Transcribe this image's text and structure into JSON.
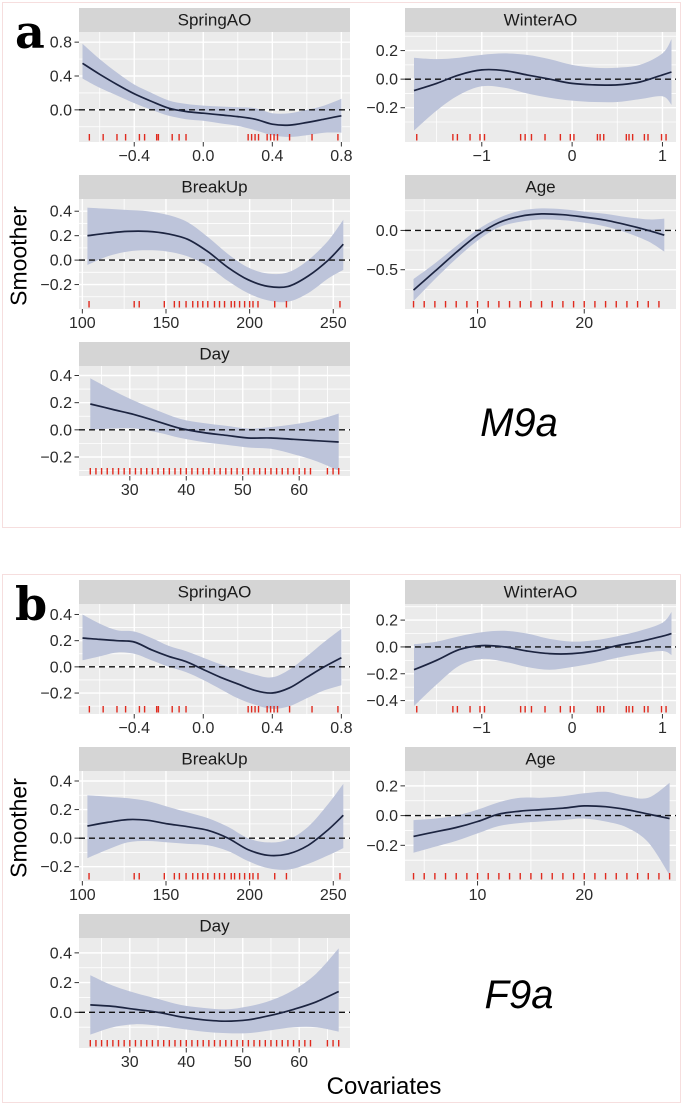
{
  "figure": {
    "panels": {
      "a": {
        "letter": "a",
        "model_label": "M9a",
        "y_axis_label": "Smoother"
      },
      "b": {
        "letter": "b",
        "model_label": "F9a",
        "y_axis_label": "Smoother",
        "x_axis_label": "Covariates"
      }
    }
  },
  "style": {
    "strip_bg": "#d5d5d5",
    "strip_text": "#1a1a1a",
    "plot_bg": "#ebebeb",
    "grid": "#ffffff",
    "ribbon": "#bdc4da",
    "line": "#1c2440",
    "zero_line": "#111111",
    "rug": "#e02a1e",
    "tick_text": "#2b2b2b",
    "frame_border": "#f6dede"
  },
  "chart_data": [
    {
      "id": "a_springao",
      "panel": "a",
      "type": "line",
      "title": "SpringAO",
      "xlim": [
        -0.72,
        0.85
      ],
      "ylim": [
        -0.38,
        0.92
      ],
      "xticks": [
        -0.4,
        0.0,
        0.4,
        0.8
      ],
      "xlabels": [
        "−0.4",
        "0.0",
        "0.4",
        "0.8"
      ],
      "yticks": [
        0.0,
        0.4,
        0.8
      ],
      "ylabels": [
        "0.0",
        "0.4",
        "0.8"
      ],
      "x": [
        -0.7,
        -0.6,
        -0.5,
        -0.4,
        -0.3,
        -0.2,
        -0.1,
        0.0,
        0.1,
        0.2,
        0.3,
        0.4,
        0.5,
        0.6,
        0.7,
        0.8
      ],
      "y": [
        0.55,
        0.42,
        0.3,
        0.19,
        0.1,
        0.02,
        -0.02,
        -0.04,
        -0.06,
        -0.08,
        -0.11,
        -0.17,
        -0.18,
        -0.15,
        -0.11,
        -0.07
      ],
      "hi": [
        0.78,
        0.6,
        0.44,
        0.3,
        0.2,
        0.11,
        0.07,
        0.05,
        0.04,
        0.03,
        0.02,
        -0.04,
        -0.04,
        0.0,
        0.05,
        0.13
      ],
      "lo": [
        0.37,
        0.26,
        0.17,
        0.08,
        0.0,
        -0.07,
        -0.11,
        -0.13,
        -0.16,
        -0.19,
        -0.24,
        -0.3,
        -0.32,
        -0.3,
        -0.27,
        -0.27
      ],
      "rug": [
        -0.66,
        -0.58,
        -0.5,
        -0.45,
        -0.37,
        -0.34,
        -0.27,
        -0.26,
        -0.18,
        -0.14,
        -0.1,
        0.26,
        0.28,
        0.3,
        0.32,
        0.37,
        0.39,
        0.41,
        0.43,
        0.5,
        0.63,
        0.78
      ]
    },
    {
      "id": "a_winterao",
      "panel": "a",
      "type": "line",
      "title": "WinterAO",
      "xlim": [
        -1.85,
        1.15
      ],
      "ylim": [
        -0.44,
        0.33
      ],
      "xticks": [
        -1,
        0,
        1
      ],
      "xlabels": [
        "−1",
        "0",
        "1"
      ],
      "yticks": [
        -0.2,
        0.0,
        0.2
      ],
      "ylabels": [
        "−0.2",
        "0.0",
        "0.2"
      ],
      "x": [
        -1.75,
        -1.5,
        -1.25,
        -1.0,
        -0.75,
        -0.5,
        -0.25,
        0.0,
        0.25,
        0.5,
        0.75,
        1.0,
        1.1
      ],
      "y": [
        -0.08,
        -0.03,
        0.03,
        0.065,
        0.06,
        0.03,
        0.0,
        -0.03,
        -0.04,
        -0.04,
        -0.02,
        0.03,
        0.05
      ],
      "hi": [
        0.15,
        0.14,
        0.15,
        0.17,
        0.18,
        0.17,
        0.14,
        0.1,
        0.08,
        0.08,
        0.1,
        0.18,
        0.28
      ],
      "lo": [
        -0.36,
        -0.22,
        -0.11,
        -0.05,
        -0.06,
        -0.1,
        -0.13,
        -0.15,
        -0.16,
        -0.16,
        -0.14,
        -0.12,
        -0.18
      ],
      "rug": [
        -1.72,
        -1.32,
        -1.27,
        -1.13,
        -1.02,
        -0.97,
        -0.57,
        -0.52,
        -0.45,
        -0.3,
        -0.13,
        -0.02,
        0.02,
        0.28,
        0.31,
        0.35,
        0.6,
        0.63,
        0.67,
        0.8,
        0.84,
        0.99,
        1.04
      ]
    },
    {
      "id": "a_breakup",
      "panel": "a",
      "type": "line",
      "title": "BreakUp",
      "xlim": [
        98,
        260
      ],
      "ylim": [
        -0.4,
        0.5
      ],
      "xticks": [
        100,
        150,
        200,
        250
      ],
      "xlabels": [
        "100",
        "150",
        "200",
        "250"
      ],
      "yticks": [
        -0.2,
        0.0,
        0.2,
        0.4
      ],
      "ylabels": [
        "−0.2",
        "0.0",
        "0.2",
        "0.4"
      ],
      "x": [
        103,
        115,
        127,
        139,
        151,
        163,
        175,
        187,
        199,
        211,
        223,
        235,
        247,
        256
      ],
      "y": [
        0.2,
        0.22,
        0.235,
        0.235,
        0.215,
        0.17,
        0.07,
        -0.06,
        -0.16,
        -0.215,
        -0.215,
        -0.13,
        0.0,
        0.13
      ],
      "hi": [
        0.43,
        0.42,
        0.41,
        0.4,
        0.37,
        0.31,
        0.19,
        0.05,
        -0.06,
        -0.11,
        -0.1,
        0.0,
        0.16,
        0.33
      ],
      "lo": [
        -0.04,
        0.03,
        0.07,
        0.08,
        0.07,
        0.03,
        -0.05,
        -0.17,
        -0.27,
        -0.33,
        -0.34,
        -0.27,
        -0.15,
        -0.08
      ],
      "rug": [
        104,
        131,
        134,
        149,
        155,
        158,
        162,
        166,
        169,
        172,
        175,
        179,
        182,
        185,
        189,
        191,
        194,
        197,
        200,
        202,
        205,
        215,
        222,
        254
      ]
    },
    {
      "id": "a_age",
      "panel": "a",
      "type": "line",
      "title": "Age",
      "xlim": [
        3.2,
        28.6
      ],
      "ylim": [
        -1.0,
        0.4
      ],
      "xticks": [
        10,
        20
      ],
      "xlabels": [
        "10",
        "20"
      ],
      "yticks": [
        -0.5,
        0.0
      ],
      "ylabels": [
        "−0.5",
        "0.0"
      ],
      "x": [
        4,
        6,
        8,
        10,
        12,
        14,
        16,
        18,
        20,
        22,
        24,
        26,
        27.5
      ],
      "y": [
        -0.76,
        -0.52,
        -0.28,
        -0.06,
        0.1,
        0.18,
        0.21,
        0.2,
        0.17,
        0.13,
        0.07,
        0.0,
        -0.06
      ],
      "hi": [
        -0.62,
        -0.42,
        -0.2,
        0.01,
        0.16,
        0.25,
        0.28,
        0.27,
        0.24,
        0.21,
        0.17,
        0.14,
        0.15
      ],
      "lo": [
        -0.9,
        -0.62,
        -0.36,
        -0.13,
        0.04,
        0.11,
        0.14,
        0.13,
        0.1,
        0.05,
        -0.03,
        -0.14,
        -0.27
      ],
      "rug": [
        4,
        5,
        6,
        7,
        8,
        9,
        10,
        11,
        12,
        13,
        14,
        15,
        16,
        17,
        18,
        19,
        20,
        21,
        22,
        23,
        24,
        25,
        26,
        27
      ]
    },
    {
      "id": "a_day",
      "panel": "a",
      "type": "line",
      "title": "Day",
      "xlim": [
        21,
        69
      ],
      "ylim": [
        -0.34,
        0.47
      ],
      "xticks": [
        30,
        40,
        50,
        60
      ],
      "xlabels": [
        "30",
        "40",
        "50",
        "60"
      ],
      "yticks": [
        -0.2,
        0.0,
        0.2,
        0.4
      ],
      "ylabels": [
        "−0.2",
        "0.0",
        "0.2",
        "0.4"
      ],
      "x": [
        23,
        27,
        31,
        35,
        39,
        43,
        47,
        51,
        55,
        59,
        63,
        67
      ],
      "y": [
        0.19,
        0.15,
        0.11,
        0.06,
        0.01,
        -0.02,
        -0.04,
        -0.06,
        -0.06,
        -0.07,
        -0.08,
        -0.09
      ],
      "hi": [
        0.38,
        0.29,
        0.21,
        0.14,
        0.08,
        0.05,
        0.03,
        0.01,
        0.02,
        0.04,
        0.07,
        0.12
      ],
      "lo": [
        0.0,
        0.01,
        0.01,
        -0.02,
        -0.06,
        -0.09,
        -0.11,
        -0.13,
        -0.14,
        -0.18,
        -0.23,
        -0.3
      ],
      "rug": [
        23,
        24,
        25,
        26,
        27,
        28,
        29,
        30,
        31,
        32,
        33,
        34,
        35,
        36,
        37,
        38,
        39,
        40,
        41,
        42,
        43,
        44,
        45,
        46,
        47,
        48,
        49,
        50,
        51,
        52,
        53,
        54,
        55,
        56,
        57,
        58,
        59,
        60,
        61,
        62,
        65,
        66,
        67
      ]
    },
    {
      "id": "b_springao",
      "panel": "b",
      "type": "line",
      "title": "SpringAO",
      "xlim": [
        -0.72,
        0.85
      ],
      "ylim": [
        -0.36,
        0.48
      ],
      "xticks": [
        -0.4,
        0.0,
        0.4,
        0.8
      ],
      "xlabels": [
        "−0.4",
        "0.0",
        "0.4",
        "0.8"
      ],
      "yticks": [
        -0.2,
        0.0,
        0.2,
        0.4
      ],
      "ylabels": [
        "−0.2",
        "0.0",
        "0.2",
        "0.4"
      ],
      "x": [
        -0.7,
        -0.6,
        -0.5,
        -0.4,
        -0.3,
        -0.2,
        -0.1,
        0.0,
        0.1,
        0.2,
        0.3,
        0.4,
        0.5,
        0.6,
        0.7,
        0.8
      ],
      "y": [
        0.22,
        0.21,
        0.2,
        0.19,
        0.13,
        0.08,
        0.04,
        -0.02,
        -0.08,
        -0.13,
        -0.18,
        -0.2,
        -0.16,
        -0.08,
        0.0,
        0.07
      ],
      "hi": [
        0.4,
        0.33,
        0.28,
        0.27,
        0.22,
        0.16,
        0.12,
        0.07,
        0.02,
        -0.02,
        -0.06,
        -0.08,
        -0.02,
        0.08,
        0.19,
        0.29
      ],
      "lo": [
        0.05,
        0.08,
        0.11,
        0.1,
        0.05,
        0.0,
        -0.04,
        -0.1,
        -0.17,
        -0.24,
        -0.29,
        -0.32,
        -0.3,
        -0.24,
        -0.18,
        -0.14
      ],
      "rug": [
        -0.66,
        -0.58,
        -0.5,
        -0.45,
        -0.37,
        -0.34,
        -0.27,
        -0.26,
        -0.18,
        -0.14,
        -0.1,
        0.26,
        0.28,
        0.3,
        0.32,
        0.37,
        0.39,
        0.41,
        0.43,
        0.5,
        0.63,
        0.78
      ]
    },
    {
      "id": "b_winterao",
      "panel": "b",
      "type": "line",
      "title": "WinterAO",
      "xlim": [
        -1.85,
        1.15
      ],
      "ylim": [
        -0.5,
        0.32
      ],
      "xticks": [
        -1,
        0,
        1
      ],
      "xlabels": [
        "−1",
        "0",
        "1"
      ],
      "yticks": [
        -0.4,
        -0.2,
        0.0,
        0.2
      ],
      "ylabels": [
        "−0.4",
        "−0.2",
        "0.0",
        "0.2"
      ],
      "x": [
        -1.75,
        -1.5,
        -1.25,
        -1.0,
        -0.75,
        -0.5,
        -0.25,
        0.0,
        0.25,
        0.5,
        0.75,
        1.0,
        1.1
      ],
      "y": [
        -0.17,
        -0.1,
        -0.02,
        0.01,
        0.0,
        -0.03,
        -0.05,
        -0.05,
        -0.03,
        0.01,
        0.04,
        0.08,
        0.1
      ],
      "hi": [
        0.02,
        0.04,
        0.08,
        0.11,
        0.12,
        0.1,
        0.06,
        0.04,
        0.05,
        0.08,
        0.12,
        0.18,
        0.26
      ],
      "lo": [
        -0.44,
        -0.28,
        -0.14,
        -0.09,
        -0.11,
        -0.15,
        -0.17,
        -0.15,
        -0.12,
        -0.08,
        -0.05,
        -0.03,
        -0.06
      ],
      "rug": [
        -1.72,
        -1.32,
        -1.27,
        -1.13,
        -1.02,
        -0.97,
        -0.57,
        -0.52,
        -0.45,
        -0.3,
        -0.13,
        -0.02,
        0.02,
        0.28,
        0.31,
        0.35,
        0.6,
        0.63,
        0.67,
        0.8,
        0.84,
        0.99,
        1.04
      ]
    },
    {
      "id": "b_breakup",
      "panel": "b",
      "type": "line",
      "title": "BreakUp",
      "xlim": [
        98,
        260
      ],
      "ylim": [
        -0.3,
        0.47
      ],
      "xticks": [
        100,
        150,
        200,
        250
      ],
      "xlabels": [
        "100",
        "150",
        "200",
        "250"
      ],
      "yticks": [
        -0.2,
        0.0,
        0.2,
        0.4
      ],
      "ylabels": [
        "−0.2",
        "0.0",
        "0.2",
        "0.4"
      ],
      "x": [
        103,
        115,
        127,
        139,
        151,
        163,
        175,
        187,
        199,
        211,
        223,
        235,
        247,
        256
      ],
      "y": [
        0.085,
        0.11,
        0.13,
        0.125,
        0.1,
        0.08,
        0.055,
        0.0,
        -0.08,
        -0.12,
        -0.11,
        -0.05,
        0.06,
        0.16
      ],
      "hi": [
        0.3,
        0.29,
        0.28,
        0.26,
        0.22,
        0.18,
        0.14,
        0.08,
        0.0,
        -0.03,
        -0.01,
        0.08,
        0.24,
        0.38
      ],
      "lo": [
        -0.14,
        -0.08,
        -0.03,
        -0.02,
        -0.03,
        -0.04,
        -0.05,
        -0.09,
        -0.16,
        -0.21,
        -0.22,
        -0.18,
        -0.12,
        -0.07
      ],
      "rug": [
        104,
        131,
        134,
        149,
        155,
        158,
        162,
        166,
        169,
        172,
        175,
        179,
        182,
        185,
        189,
        191,
        194,
        197,
        200,
        202,
        205,
        215,
        222,
        254
      ]
    },
    {
      "id": "b_age",
      "panel": "b",
      "type": "line",
      "title": "Age",
      "xlim": [
        3.2,
        28.6
      ],
      "ylim": [
        -0.44,
        0.3
      ],
      "xticks": [
        10,
        20
      ],
      "xlabels": [
        "10",
        "20"
      ],
      "yticks": [
        -0.2,
        0.0,
        0.2
      ],
      "ylabels": [
        "−0.2",
        "0.0",
        "0.2"
      ],
      "x": [
        4,
        6,
        8,
        10,
        12,
        14,
        16,
        18,
        20,
        22,
        24,
        26,
        28
      ],
      "y": [
        -0.14,
        -0.11,
        -0.08,
        -0.04,
        0.01,
        0.03,
        0.04,
        0.05,
        0.065,
        0.06,
        0.04,
        0.01,
        -0.02
      ],
      "hi": [
        -0.03,
        -0.02,
        0.0,
        0.04,
        0.09,
        0.12,
        0.12,
        0.13,
        0.15,
        0.16,
        0.13,
        0.12,
        0.22
      ],
      "lo": [
        -0.25,
        -0.21,
        -0.17,
        -0.12,
        -0.07,
        -0.05,
        -0.04,
        -0.03,
        -0.02,
        -0.04,
        -0.08,
        -0.18,
        -0.4
      ],
      "rug": [
        4,
        5,
        6,
        7,
        8,
        9,
        10,
        11,
        12,
        13,
        14,
        15,
        16,
        17,
        18,
        19,
        20,
        21,
        22,
        23,
        24,
        25,
        26,
        27,
        28
      ]
    },
    {
      "id": "b_day",
      "panel": "b",
      "type": "line",
      "title": "Day",
      "xlim": [
        21,
        69
      ],
      "ylim": [
        -0.24,
        0.5
      ],
      "xticks": [
        30,
        40,
        50,
        60
      ],
      "xlabels": [
        "30",
        "40",
        "50",
        "60"
      ],
      "yticks": [
        0.0,
        0.2,
        0.4
      ],
      "ylabels": [
        "0.0",
        "0.2",
        "0.4"
      ],
      "x": [
        23,
        27,
        31,
        35,
        39,
        43,
        47,
        51,
        55,
        59,
        63,
        67
      ],
      "y": [
        0.05,
        0.04,
        0.02,
        0.0,
        -0.03,
        -0.05,
        -0.06,
        -0.05,
        -0.02,
        0.02,
        0.07,
        0.14
      ],
      "hi": [
        0.25,
        0.18,
        0.13,
        0.09,
        0.05,
        0.03,
        0.02,
        0.04,
        0.08,
        0.15,
        0.26,
        0.43
      ],
      "lo": [
        -0.15,
        -0.1,
        -0.08,
        -0.09,
        -0.11,
        -0.13,
        -0.14,
        -0.14,
        -0.12,
        -0.1,
        -0.1,
        -0.13
      ],
      "rug": [
        23,
        24,
        25,
        26,
        27,
        28,
        29,
        30,
        31,
        32,
        33,
        34,
        35,
        36,
        37,
        38,
        39,
        40,
        41,
        42,
        43,
        44,
        45,
        46,
        47,
        48,
        49,
        50,
        51,
        52,
        53,
        54,
        55,
        56,
        57,
        58,
        59,
        60,
        61,
        62,
        65,
        66,
        67
      ]
    }
  ]
}
